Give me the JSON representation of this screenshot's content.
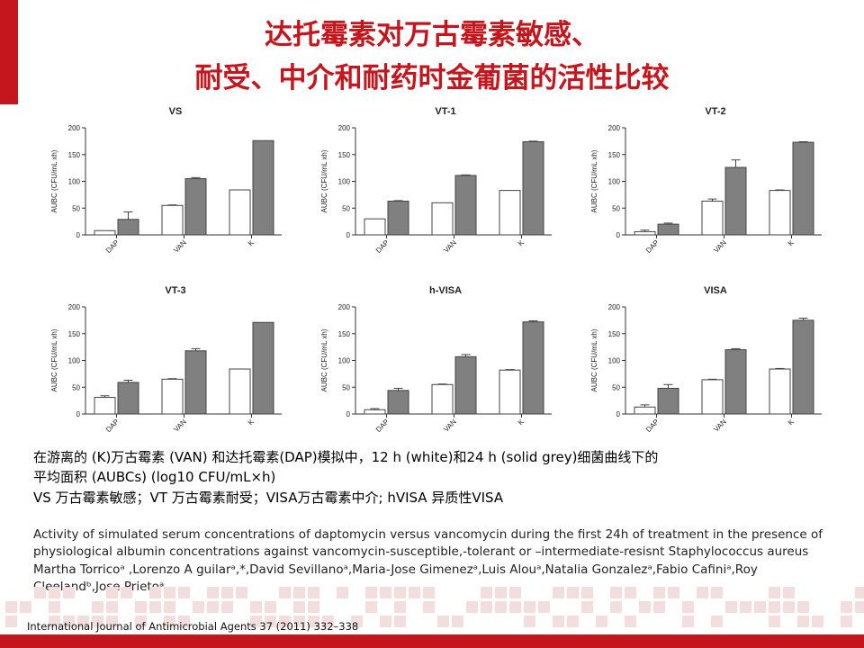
{
  "title": {
    "line1": "达托霉素对万古霉素敏感、",
    "line2": "耐受、中介和耐药时金葡菌的活性比较"
  },
  "chart_data": [
    {
      "type": "bar",
      "title": "VS",
      "ylabel": "AUBC (CFU/mL xh)",
      "categories": [
        "DAP",
        "VAN",
        "K"
      ],
      "ylim": [
        0,
        200
      ],
      "yticks": [
        "0",
        "50",
        "100",
        "150",
        "200"
      ],
      "series": [
        {
          "fill": "#ffffff",
          "values": [
            8,
            55,
            84
          ],
          "errors": [
            0,
            1,
            0
          ]
        },
        {
          "fill": "#808080",
          "values": [
            29,
            105,
            176
          ],
          "errors": [
            14,
            2,
            0
          ]
        }
      ]
    },
    {
      "type": "bar",
      "title": "VT-1",
      "ylabel": "AUBC (CFU/mL xh)",
      "categories": [
        "DAP",
        "VAN",
        "K"
      ],
      "ylim": [
        0,
        200
      ],
      "yticks": [
        "0",
        "50",
        "100",
        "150",
        "200"
      ],
      "series": [
        {
          "fill": "#ffffff",
          "values": [
            30,
            60,
            83
          ],
          "errors": [
            0,
            0,
            0
          ]
        },
        {
          "fill": "#808080",
          "values": [
            63,
            111,
            174
          ],
          "errors": [
            1,
            1,
            1
          ]
        }
      ]
    },
    {
      "type": "bar",
      "title": "VT-2",
      "ylabel": "AUBC (CFU/mL xh)",
      "categories": [
        "DAP",
        "VAN",
        "K"
      ],
      "ylim": [
        0,
        200
      ],
      "yticks": [
        "0",
        "50",
        "100",
        "150",
        "200"
      ],
      "series": [
        {
          "fill": "#ffffff",
          "values": [
            6,
            63,
            83
          ],
          "errors": [
            3,
            4,
            1
          ]
        },
        {
          "fill": "#808080",
          "values": [
            20,
            126,
            173
          ],
          "errors": [
            2,
            14,
            1
          ]
        }
      ]
    },
    {
      "type": "bar",
      "title": "VT-3",
      "ylabel": "AUBC (CFU/mL xh)",
      "categories": [
        "DAP",
        "VAN",
        "K"
      ],
      "ylim": [
        0,
        200
      ],
      "yticks": [
        "0",
        "50",
        "100",
        "150",
        "200"
      ],
      "series": [
        {
          "fill": "#ffffff",
          "values": [
            31,
            65,
            84
          ],
          "errors": [
            3,
            1,
            0
          ]
        },
        {
          "fill": "#808080",
          "values": [
            59,
            118,
            171
          ],
          "errors": [
            4,
            4,
            0
          ]
        }
      ]
    },
    {
      "type": "bar",
      "title": "h-VISA",
      "ylabel": "AUBC (CFU/mL xh)",
      "categories": [
        "DAP",
        "VAN",
        "K"
      ],
      "ylim": [
        0,
        200
      ],
      "yticks": [
        "0",
        "50",
        "100",
        "150",
        "200"
      ],
      "series": [
        {
          "fill": "#ffffff",
          "values": [
            8,
            55,
            82
          ],
          "errors": [
            2,
            1,
            1
          ]
        },
        {
          "fill": "#808080",
          "values": [
            44,
            107,
            172
          ],
          "errors": [
            4,
            4,
            2
          ]
        }
      ]
    },
    {
      "type": "bar",
      "title": "VISA",
      "ylabel": "AUBC (CFU/mL xh)",
      "categories": [
        "DAP",
        "VAN",
        "K"
      ],
      "ylim": [
        0,
        200
      ],
      "yticks": [
        "0",
        "50",
        "100",
        "150",
        "200"
      ],
      "series": [
        {
          "fill": "#ffffff",
          "values": [
            13,
            64,
            84
          ],
          "errors": [
            4,
            1,
            1
          ]
        },
        {
          "fill": "#808080",
          "values": [
            48,
            120,
            175
          ],
          "errors": [
            7,
            2,
            4
          ]
        }
      ]
    }
  ],
  "caption": {
    "line1": "在游离的 (K)万古霉素 (VAN) 和达托霉素(DAP)模拟中，12 h (white)和24 h (solid grey)细菌曲线下的",
    "line2": "平均面积 (AUBCs) (log10 CFU/mL×h)",
    "line3": "VS 万古霉素敏感；VT 万古霉素耐受；VISA万古霉素中介; hVISA 异质性VISA"
  },
  "citation": {
    "line1": "Activity of simulated serum concentrations of daptomycin versus vancomycin during the first 24h of treatment in the presence of",
    "line2": "physiological albumin concentrations against vancomycin-susceptible,-tolerant or –intermediate-resisnt Staphylococcus aureus",
    "line3": "Martha Torricoᵃ ,Lorenzo A guilarᵃ,*,David Sevillanoᵃ,Maria-Jose Gimenezᵃ,Luis Alouᵃ,Natalia Gonzalezᵃ,Fabio Cafiniᵃ,Roy",
    "line4": "Cleelandᵇ,Jose Prietoᵃ"
  },
  "journal": "International Journal of Antimicrobial Agents 37 (2011) 332–338"
}
